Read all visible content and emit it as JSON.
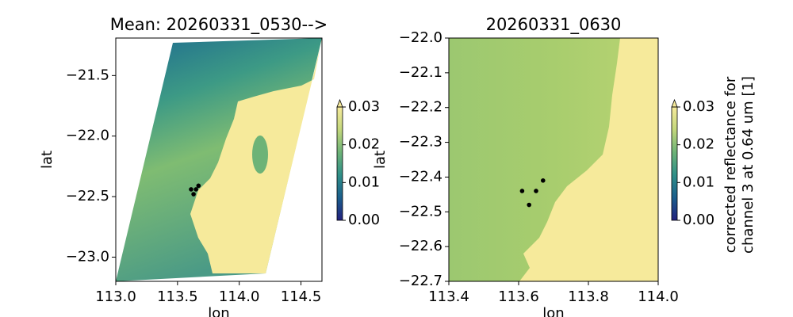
{
  "chart_data": [
    {
      "type": "scatter",
      "title": "Mean: 20260331_0530-->",
      "x_label": "lon",
      "y_label": "lat",
      "x": [
        113.61,
        113.65,
        113.67,
        113.63
      ],
      "y": [
        -22.44,
        -22.44,
        -22.41,
        -22.48
      ],
      "color": "#000000",
      "xlim": [
        113.0,
        114.67
      ],
      "ylim": [
        -23.2,
        -21.19
      ],
      "xticks": [
        {
          "value": 113.0,
          "label": "113.0"
        },
        113.5,
        {
          "value": 114.0,
          "label": "114.0"
        },
        114.5
      ],
      "yticks": [
        {
          "value": -21.5,
          "label": "−21.5"
        },
        {
          "value": -22.0,
          "label": "−22.0"
        },
        {
          "value": -22.5,
          "label": "−22.5"
        },
        {
          "value": -23.0,
          "label": "−23.0"
        }
      ],
      "colorbar": {
        "lim": [
          0,
          0.03
        ],
        "ticks": [
          {
            "value": 0,
            "label": "0.00"
          },
          {
            "value": 0.01,
            "label": "0.01"
          },
          {
            "value": 0.02,
            "label": "0.02"
          },
          {
            "value": 0.03,
            "label": "0.03"
          }
        ],
        "colormap": [
          "#22207e",
          "#1b5e8c",
          "#2f8f88",
          "#6db377",
          "#c3d77c",
          "#f6ea9b"
        ]
      }
    },
    {
      "type": "scatter",
      "title": "20260331_0630",
      "x_label": "lon",
      "y_label": "lat",
      "x": [
        113.61,
        113.65,
        113.67,
        113.63
      ],
      "y": [
        -22.44,
        -22.44,
        -22.41,
        -22.48
      ],
      "color": "#000000",
      "xlim": [
        113.4,
        114.0
      ],
      "ylim": [
        -22.7,
        -22.0
      ],
      "xticks": [
        113.4,
        113.6,
        113.8,
        {
          "value": 114.0,
          "label": "114.0"
        }
      ],
      "yticks": [
        {
          "value": -22.0,
          "label": "−22.0"
        },
        {
          "value": -22.1,
          "label": "−22.1"
        },
        {
          "value": -22.2,
          "label": "−22.2"
        },
        {
          "value": -22.3,
          "label": "−22.3"
        },
        {
          "value": -22.4,
          "label": "−22.4"
        },
        {
          "value": -22.5,
          "label": "−22.5"
        },
        {
          "value": -22.6,
          "label": "−22.6"
        },
        {
          "value": -22.7,
          "label": "−22.7"
        }
      ],
      "colorbar": {
        "lim": [
          0,
          0.03
        ],
        "ticks": [
          {
            "value": 0,
            "label": "0.00"
          },
          {
            "value": 0.01,
            "label": "0.01"
          },
          {
            "value": 0.02,
            "label": "0.02"
          },
          {
            "value": 0.03,
            "label": "0.03"
          }
        ],
        "label": [
          "corrected reflectance for",
          "channel 3 at 0.64 um [1]"
        ],
        "colormap": [
          "#22207e",
          "#1b5e8c",
          "#2f8f88",
          "#6db377",
          "#c3d77c",
          "#f6ea9b"
        ]
      }
    }
  ]
}
